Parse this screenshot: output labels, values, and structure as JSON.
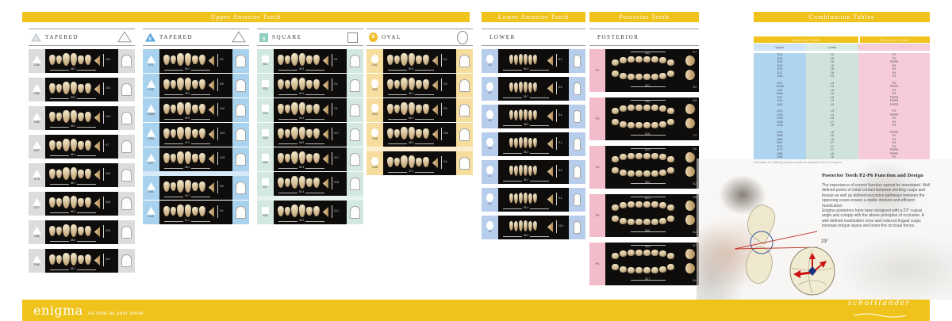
{
  "sections": {
    "upper": {
      "title": "Upper Anterior Teeth"
    },
    "lower": {
      "title": "Lower Anterior Teeth",
      "col_label": "LOWER"
    },
    "posterior": {
      "title": "Posterior Teeth",
      "col_label": "POSTERIOR"
    },
    "combination": {
      "title": "Combination Tables"
    }
  },
  "accent_color": "#efc31b",
  "anterior_columns": [
    {
      "letter": "D",
      "label": "TAPERED",
      "shape": "triangle",
      "colors": {
        "chip": "#c9ced3",
        "cell": "#dadcde",
        "band": "#ebedee"
      },
      "band_after": null,
      "cards": [
        {
          "code": "D36",
          "width_mm": "48.2",
          "height_mm": "10.2"
        },
        {
          "code": "D56",
          "width_mm": "49.8",
          "height_mm": "10.6"
        },
        {
          "code": "D66",
          "width_mm": "45.2",
          "height_mm": "10.4"
        },
        {
          "code": "D67",
          "width_mm": "45.1",
          "height_mm": "9.7"
        },
        {
          "code": "D76",
          "width_mm": "46.7",
          "height_mm": "10.8"
        },
        {
          "code": "D77",
          "width_mm": "46.2",
          "height_mm": "10.5"
        },
        {
          "code": "D86",
          "width_mm": "48.5",
          "height_mm": "10.6"
        },
        {
          "code": "D96",
          "width_mm": "48.1",
          "height_mm": "11.0"
        }
      ]
    },
    {
      "letter": "K",
      "label": "TAPERED",
      "shape": "triangle",
      "colors": {
        "chip": "#54a5dc",
        "cell": "#a9d2ef",
        "band": "#d8eaf8"
      },
      "band_after": 5,
      "cards": [
        {
          "code": "K21",
          "width_mm": "45.2",
          "height_mm": "9.9"
        },
        {
          "code": "K25",
          "width_mm": "43.5",
          "height_mm": "9.8"
        },
        {
          "code": "K24B",
          "width_mm": "43.9",
          "height_mm": "10.6"
        },
        {
          "code": "K26L",
          "width_mm": "47.4",
          "height_mm": "10.9"
        },
        {
          "code": "K27",
          "width_mm": "48.2",
          "height_mm": "10.8"
        },
        {
          "code": "K41",
          "width_mm": "43.7",
          "height_mm": "9.8"
        },
        {
          "code": "K42",
          "width_mm": "44.1",
          "height_mm": "9.4"
        }
      ]
    },
    {
      "letter": "S",
      "label": "SQUARE",
      "shape": "square",
      "colors": {
        "chip": "#8fcfc0",
        "cell": "#d2e8e0",
        "band": "#e6f2ed"
      },
      "band_after": 6,
      "cards": [
        {
          "code": "S11",
          "width_mm": "45.3",
          "height_mm": "9.4"
        },
        {
          "code": "S12",
          "width_mm": "43.1",
          "height_mm": "9.5"
        },
        {
          "code": "S13",
          "width_mm": "44.3",
          "height_mm": "9.4"
        },
        {
          "code": "S14",
          "width_mm": "46.9",
          "height_mm": "10.7"
        },
        {
          "code": "S15",
          "width_mm": "45.3",
          "height_mm": "10.7"
        },
        {
          "code": "S17",
          "width_mm": "52.4",
          "height_mm": "10.8"
        },
        {
          "code": "S18",
          "width_mm": "46.2",
          "height_mm": "10.1"
        }
      ]
    },
    {
      "letter": "O",
      "label": "OVAL",
      "shape": "oval",
      "colors": {
        "chip": "#f0be2b",
        "cell": "#f6dc9d",
        "band": "#fbeed0"
      },
      "band_after": 4,
      "cards": [
        {
          "code": "O31",
          "width_mm": "50.5",
          "height_mm": "9.4"
        },
        {
          "code": "O32",
          "width_mm": "45.1",
          "height_mm": "9.8"
        },
        {
          "code": "O34",
          "width_mm": "46.4",
          "height_mm": "9.9"
        },
        {
          "code": "O36",
          "width_mm": "46.9",
          "height_mm": "10.0"
        },
        {
          "code": "O38",
          "width_mm": "47.3",
          "height_mm": "9.4"
        }
      ]
    }
  ],
  "lower_column": {
    "colors": {
      "cell": "#b7cdec"
    },
    "cards": [
      {
        "code": "L2",
        "width_mm": "34.4",
        "height_mm": "8.3"
      },
      {
        "code": "L3",
        "width_mm": "36.7",
        "height_mm": "8.5"
      },
      {
        "code": "L5",
        "width_mm": "35.9",
        "height_mm": "8.4"
      },
      {
        "code": "L6",
        "width_mm": "34.3",
        "height_mm": "9.1"
      },
      {
        "code": "L7",
        "width_mm": "36.2",
        "height_mm": "8.3"
      },
      {
        "code": "L8",
        "width_mm": "35.4",
        "height_mm": "9.4"
      },
      {
        "code": "L9",
        "width_mm": "36.2",
        "height_mm": "11.0"
      }
    ]
  },
  "posterior_column": {
    "colors": {
      "cell": "#f3bcca"
    },
    "cards": [
      {
        "code": "P2",
        "upper_mm": "30.2",
        "lower_mm": "32.1",
        "side_upper_mm": "8.7",
        "side_lower_mm": "8.0"
      },
      {
        "code": "P3",
        "upper_mm": "29.5",
        "lower_mm": "31.8",
        "side_upper_mm": "8.8",
        "side_lower_mm": "7.9"
      },
      {
        "code": "P4",
        "upper_mm": "31.4",
        "lower_mm": "33.2",
        "side_upper_mm": "9.0",
        "side_lower_mm": "8.2"
      },
      {
        "code": "P5",
        "upper_mm": "31.2",
        "lower_mm": "33.0",
        "side_upper_mm": "8.8",
        "side_lower_mm": "8.2"
      },
      {
        "code": "P6",
        "upper_mm": "30.4",
        "lower_mm": "32.7",
        "side_upper_mm": "8.7",
        "side_lower_mm": "8.0"
      }
    ]
  },
  "combination_table": {
    "group_headers": {
      "anterior": "Anterior Teeth",
      "posterior": "Posterior Teeth"
    },
    "col_headers": {
      "upper": "Upper",
      "lower": "Lower"
    },
    "column_colors": {
      "upper": "#aed4ef",
      "lower": "#cfe3da",
      "posterior": "#f6ccd8",
      "upper_head": "#cfe4f6",
      "lower_head": "#dcebe3",
      "posterior_head": "#f6ccd8"
    },
    "groups": [
      {
        "rows": [
          [
            "S11",
            "L3",
            "P3"
          ],
          [
            "S12",
            "L5",
            "P3"
          ],
          [
            "S13",
            "L5",
            "P3/P5"
          ],
          [
            "S14",
            "L6",
            "P4"
          ],
          [
            "S15",
            "L8",
            "P4"
          ],
          [
            "S17",
            "L8",
            "P4"
          ],
          [
            "S18",
            "L3",
            "P3"
          ]
        ]
      },
      {
        "rows": [
          [
            "K21",
            "L3",
            "P3"
          ],
          [
            "K24B",
            "L3",
            "P3/P5"
          ],
          [
            "K25",
            "L5",
            "P4"
          ],
          [
            "K26L",
            "L6",
            "P4"
          ],
          [
            "K27",
            "L8",
            "P3/P5"
          ],
          [
            "K41",
            "L3",
            "P3/P5"
          ],
          [
            "K42",
            "L5",
            "P3/P5"
          ]
        ]
      },
      {
        "rows": [
          [
            "O31",
            "L3",
            "P3"
          ],
          [
            "O32",
            "L3",
            "P3/P5"
          ],
          [
            "O34",
            "L5",
            "P4"
          ],
          [
            "O36",
            "L7",
            "P4"
          ],
          [
            "O38",
            "L5",
            "P4"
          ]
        ]
      },
      {
        "rows": [
          [
            "D36",
            "L6",
            "P3/P5"
          ],
          [
            "D56",
            "L5",
            "P4"
          ],
          [
            "D66",
            "L5",
            "P4"
          ],
          [
            "D67",
            "L7",
            "P4"
          ],
          [
            "D76",
            "L7",
            "P4"
          ],
          [
            "D77",
            "L7",
            "P3/P5"
          ],
          [
            "D86",
            "L8",
            "P3/P5"
          ],
          [
            "D96",
            "L6",
            "P4"
          ]
        ]
      }
    ],
    "note": "Information for obtaining optimum results are available from us on request"
  },
  "article": {
    "title": "Posterior Teeth P2-P6 Function and Design",
    "paragraphs": [
      "The importance of correct function cannot be overstated. Well defined points of initial contact between working cusps and fossae as well as defined excursive pathways between the opposing cusps ensure a stable denture and efficient mastication.",
      "Enigma posteriors have been designed with a 23° cuspal angle and comply with the above principles of occlusion. A well defined mastication zone and reduced lingual cusps increase tongue space and lower the occlusal forces."
    ],
    "angle_label": "23°"
  },
  "footer": {
    "brand": "enigma",
    "tagline": "As vital as your smile",
    "logo": "schottlander"
  }
}
